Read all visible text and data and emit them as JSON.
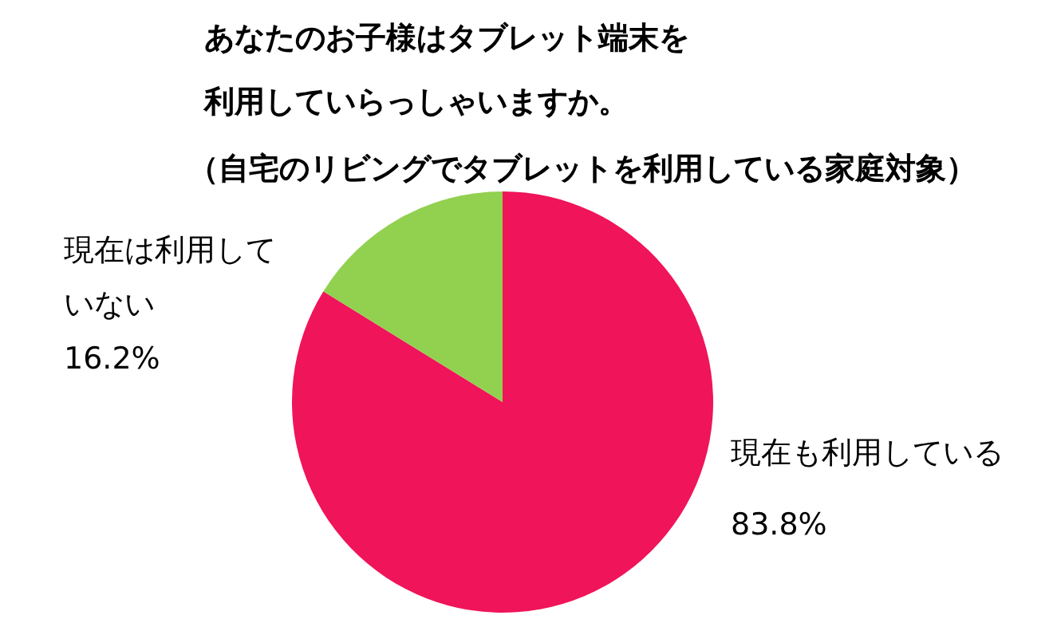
{
  "chart_data": {
    "type": "pie",
    "title": "あなたのお子様はタブレット端末を利用していらっしゃいますか。",
    "subtitle": "（自宅のリビングでタブレットを利用している家庭対象）",
    "categories": [
      "現在も利用している",
      "現在は利用していない"
    ],
    "values": [
      83.8,
      16.2
    ],
    "colors": [
      "#f0145a",
      "#92d050"
    ],
    "value_labels": [
      "83.8%",
      "16.2%"
    ]
  }
}
